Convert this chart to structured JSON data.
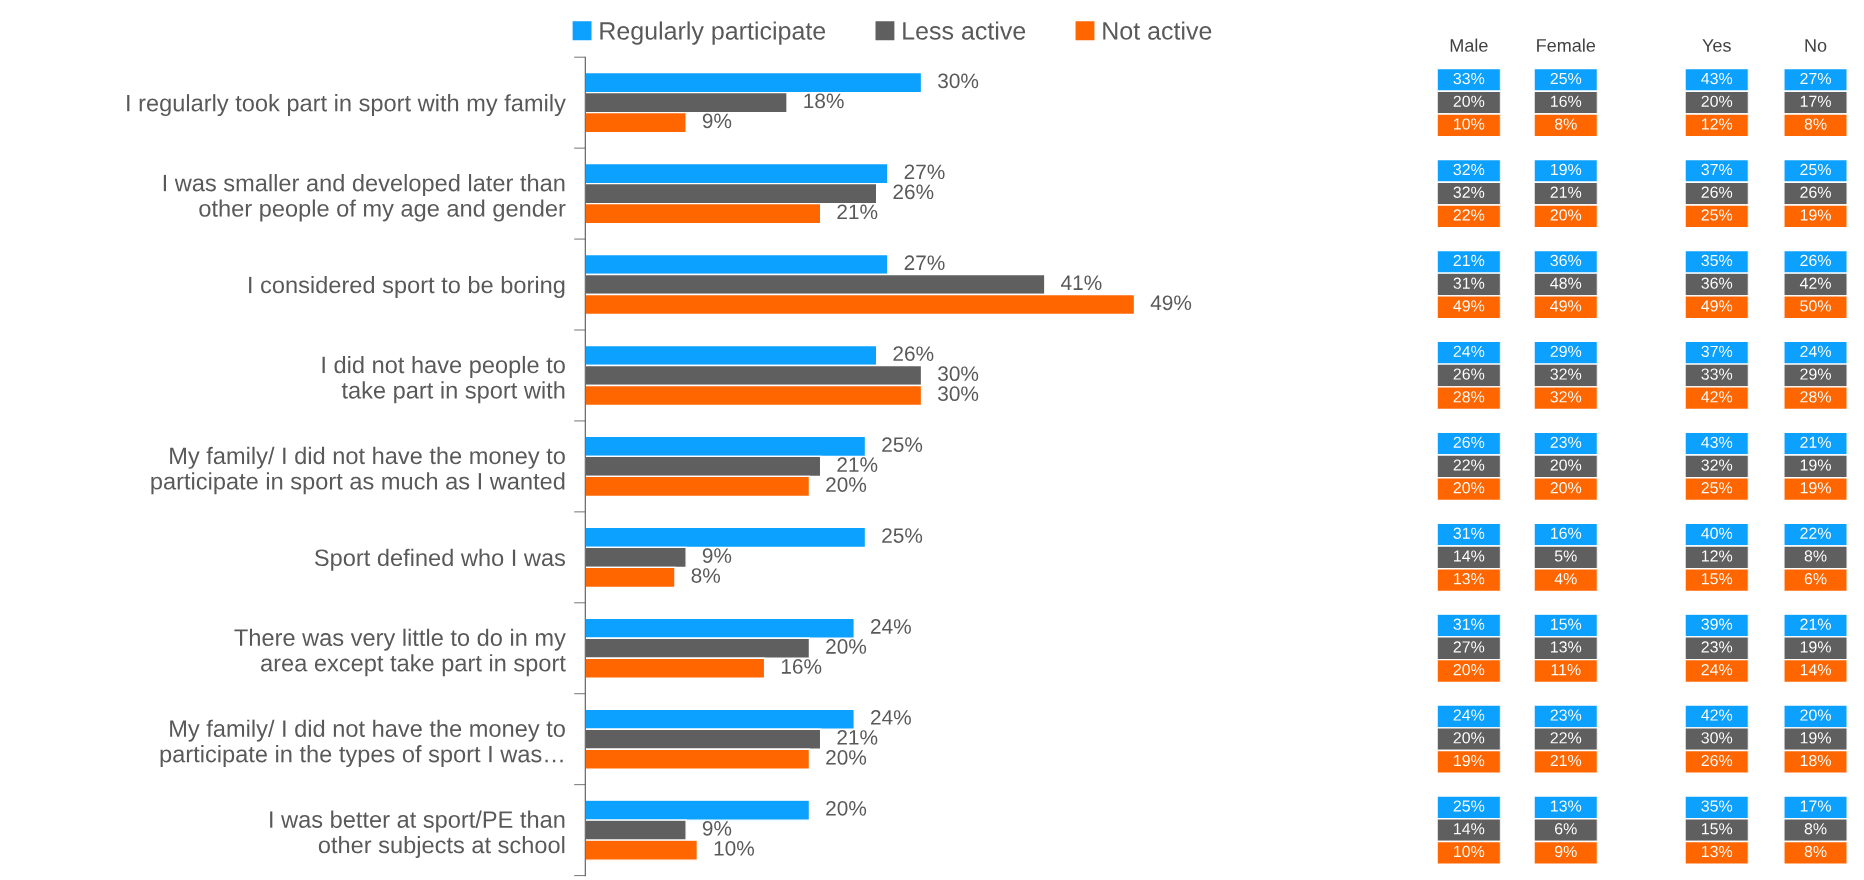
{
  "chart_data": [
    {
      "type": "bar",
      "orientation": "horizontal",
      "legend": "top",
      "categories": [
        "I regularly took part in sport with my family",
        "I was smaller and developed later than other people of my age and gender",
        "I considered sport to be boring",
        "I did not have people to take part in sport with",
        "My family/ I did not have the money to participate in sport as much as I wanted",
        "Sport defined who I was",
        "There was very little to do in my area except take part in sport",
        "My family/ I did not have the money to participate in the types of sport I was…",
        "I was better at sport/PE than other subjects at school"
      ],
      "series": [
        {
          "name": "Regularly participate",
          "color": "#0ca0ff",
          "values": [
            30,
            27,
            27,
            26,
            25,
            25,
            24,
            24,
            20
          ],
          "value_labels": [
            "30%",
            "27%",
            "27%",
            "26%",
            "25%",
            "25%",
            "24%",
            "24%",
            "20%"
          ]
        },
        {
          "name": "Less active",
          "color": "#5f5f5f",
          "values": [
            18,
            26,
            41,
            30,
            21,
            9,
            20,
            21,
            9
          ],
          "value_labels": [
            "18%",
            "26%",
            "41%",
            "30%",
            "21%",
            "9%",
            "20%",
            "21%",
            "9%"
          ]
        },
        {
          "name": "Not active",
          "color": "#ff6600",
          "values": [
            9,
            21,
            49,
            30,
            20,
            8,
            16,
            20,
            10
          ],
          "value_labels": [
            "9%",
            "21%",
            "49%",
            "30%",
            "20%",
            "8%",
            "16%",
            "20%",
            "10%"
          ]
        }
      ]
    },
    {
      "type": "other",
      "title": "Male",
      "value_labels": [
        "33%",
        "20%",
        "10%",
        "32%",
        "32%",
        "22%",
        "21%",
        "31%",
        "49%",
        "24%",
        "26%",
        "28%",
        "26%",
        "22%",
        "20%",
        "31%",
        "14%",
        "13%",
        "31%",
        "27%",
        "20%",
        "24%",
        "20%",
        "19%",
        "25%",
        "14%",
        "10%"
      ],
      "colors": [
        "#0ca0ff",
        "#5f5f5f",
        "#ff6600",
        "#0ca0ff",
        "#5f5f5f",
        "#ff6600",
        "#0ca0ff",
        "#5f5f5f",
        "#ff6600",
        "#0ca0ff",
        "#5f5f5f",
        "#ff6600",
        "#0ca0ff",
        "#5f5f5f",
        "#ff6600",
        "#0ca0ff",
        "#5f5f5f",
        "#ff6600",
        "#0ca0ff",
        "#5f5f5f",
        "#ff6600",
        "#0ca0ff",
        "#5f5f5f",
        "#ff6600",
        "#0ca0ff",
        "#5f5f5f",
        "#ff6600"
      ]
    },
    {
      "type": "other",
      "title": "Female",
      "value_labels": [
        "25%",
        "16%",
        "8%",
        "19%",
        "21%",
        "20%",
        "36%",
        "48%",
        "49%",
        "29%",
        "32%",
        "32%",
        "23%",
        "20%",
        "20%",
        "16%",
        "5%",
        "4%",
        "15%",
        "13%",
        "11%",
        "23%",
        "22%",
        "21%",
        "13%",
        "6%",
        "9%"
      ],
      "colors": [
        "#0ca0ff",
        "#5f5f5f",
        "#ff6600",
        "#0ca0ff",
        "#5f5f5f",
        "#ff6600",
        "#0ca0ff",
        "#5f5f5f",
        "#ff6600",
        "#0ca0ff",
        "#5f5f5f",
        "#ff6600",
        "#0ca0ff",
        "#5f5f5f",
        "#ff6600",
        "#0ca0ff",
        "#5f5f5f",
        "#ff6600",
        "#0ca0ff",
        "#5f5f5f",
        "#ff6600",
        "#0ca0ff",
        "#5f5f5f",
        "#ff6600",
        "#0ca0ff",
        "#5f5f5f",
        "#ff6600"
      ]
    },
    {
      "type": "other",
      "title": "Yes",
      "value_labels": [
        "43%",
        "20%",
        "12%",
        "37%",
        "26%",
        "25%",
        "35%",
        "36%",
        "49%",
        "37%",
        "33%",
        "42%",
        "43%",
        "32%",
        "25%",
        "40%",
        "12%",
        "15%",
        "39%",
        "23%",
        "24%",
        "42%",
        "30%",
        "26%",
        "35%",
        "15%",
        "13%"
      ],
      "colors": [
        "#0ca0ff",
        "#5f5f5f",
        "#ff6600",
        "#0ca0ff",
        "#5f5f5f",
        "#ff6600",
        "#0ca0ff",
        "#5f5f5f",
        "#ff6600",
        "#0ca0ff",
        "#5f5f5f",
        "#ff6600",
        "#0ca0ff",
        "#5f5f5f",
        "#ff6600",
        "#0ca0ff",
        "#5f5f5f",
        "#ff6600",
        "#0ca0ff",
        "#5f5f5f",
        "#ff6600",
        "#0ca0ff",
        "#5f5f5f",
        "#ff6600",
        "#0ca0ff",
        "#5f5f5f",
        "#ff6600"
      ]
    },
    {
      "type": "other",
      "title": "No",
      "value_labels": [
        "27%",
        "17%",
        "8%",
        "25%",
        "26%",
        "19%",
        "26%",
        "42%",
        "50%",
        "24%",
        "29%",
        "28%",
        "21%",
        "19%",
        "19%",
        "22%",
        "8%",
        "6%",
        "21%",
        "19%",
        "14%",
        "20%",
        "19%",
        "18%",
        "17%",
        "8%",
        "8%"
      ],
      "colors": [
        "#0ca0ff",
        "#5f5f5f",
        "#ff6600",
        "#0ca0ff",
        "#5f5f5f",
        "#ff6600",
        "#0ca0ff",
        "#5f5f5f",
        "#ff6600",
        "#0ca0ff",
        "#5f5f5f",
        "#ff6600",
        "#0ca0ff",
        "#5f5f5f",
        "#ff6600",
        "#0ca0ff",
        "#5f5f5f",
        "#ff6600",
        "#0ca0ff",
        "#5f5f5f",
        "#ff6600",
        "#0ca0ff",
        "#5f5f5f",
        "#ff6600",
        "#0ca0ff",
        "#5f5f5f",
        "#ff6600"
      ]
    }
  ]
}
